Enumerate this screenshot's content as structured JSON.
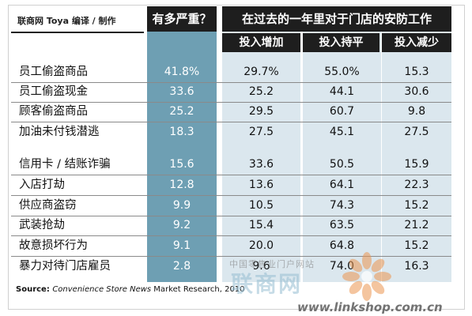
{
  "header": {
    "credit": "联商网 Toya 编译 / 制作",
    "severity": "有多严重？",
    "security_group": "在过去的一年里对于门店的安防工作",
    "sub_increase": "投入增加",
    "sub_same": "投入持平",
    "sub_decrease": "投入减少"
  },
  "rows": [
    {
      "label": "员工偷盗商品",
      "severity": "41.8%",
      "increase": "29.7%",
      "same": "55.0%",
      "decrease": "15.3"
    },
    {
      "label": "员工偷盗现金",
      "severity": "33.6",
      "increase": "25.2",
      "same": "44.1",
      "decrease": "30.6"
    },
    {
      "label": "顾客偷盗商品",
      "severity": "25.2",
      "increase": "29.5",
      "same": "60.7",
      "decrease": "9.8"
    },
    {
      "label": "加油未付钱潜逃",
      "severity": "18.3",
      "increase": "27.5",
      "same": "45.1",
      "decrease": "27.5"
    },
    {
      "label": "信用卡 / 结账诈骗",
      "severity": "15.6",
      "increase": "33.6",
      "same": "50.5",
      "decrease": "15.9"
    },
    {
      "label": "入店打劫",
      "severity": "12.8",
      "increase": "13.6",
      "same": "64.1",
      "decrease": "22.3"
    },
    {
      "label": "供应商盗窃",
      "severity": "9.9",
      "increase": "10.5",
      "same": "74.3",
      "decrease": "15.2"
    },
    {
      "label": "武装抢劫",
      "severity": "9.2",
      "increase": "15.4",
      "same": "63.5",
      "decrease": "21.2"
    },
    {
      "label": "故意损坏行为",
      "severity": "9.1",
      "increase": "20.0",
      "same": "64.8",
      "decrease": "15.2"
    },
    {
      "label": "暴力对待门店雇员",
      "severity": "2.8",
      "increase": "9.6",
      "same": "74.0",
      "decrease": "16.3"
    }
  ],
  "source": {
    "prefix": "Source: ",
    "publication": "Convenience Store News",
    "suffix": " Market Research, 2010"
  },
  "watermark": {
    "cn_small": "中国零售业门户网站",
    "cn_big": "联商网",
    "url": "www.linkshop.com.cn"
  },
  "colors": {
    "severity_column": "#6e9fb3",
    "security_columns": "#dbe7ee",
    "header_bg": "#1e1e1e"
  }
}
